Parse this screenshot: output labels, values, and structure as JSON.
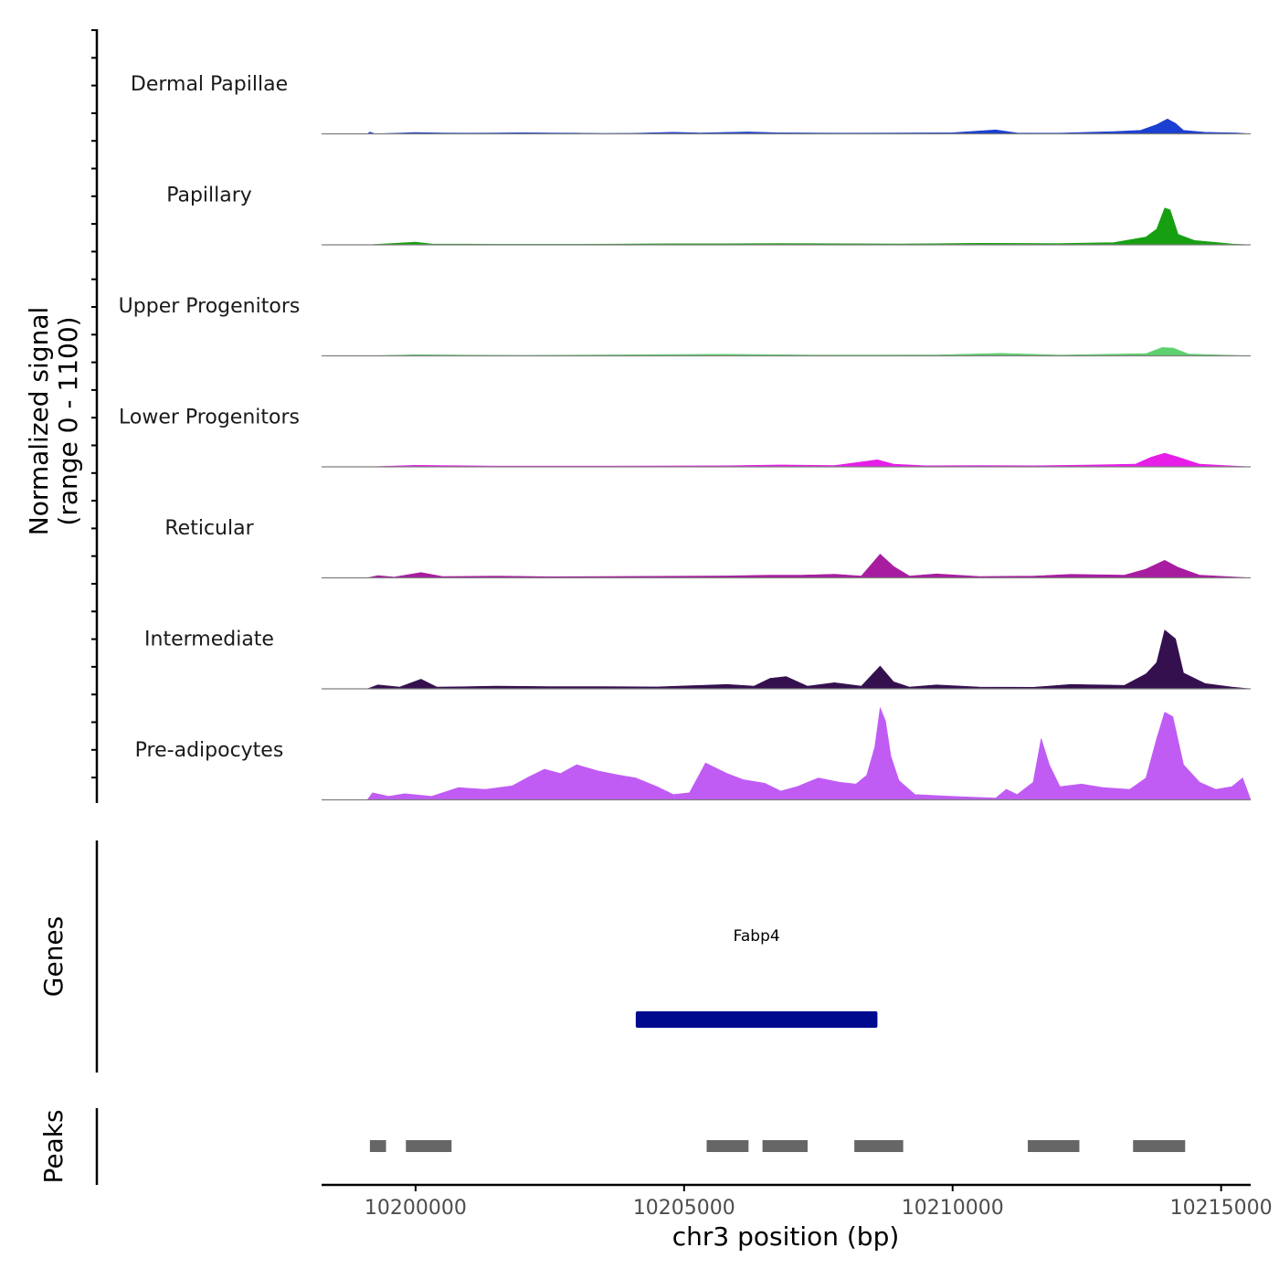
{
  "chart_data": {
    "type": "area",
    "title": "",
    "ylabel_line1": "Normalized signal",
    "ylabel_line2": "(range 0 - 1100)",
    "ylim": [
      0,
      1100
    ],
    "xlabel": "chr3 position (bp)",
    "xlim": [
      10198250,
      10215550
    ],
    "xticks": [
      10200000,
      10205000,
      10210000,
      10215000
    ],
    "xtick_labels": [
      "10200000",
      "10205000",
      "10210000",
      "10215000"
    ],
    "grid": false,
    "tracks": [
      {
        "name": "Dermal Papillae",
        "color": "#1b3fd1",
        "points": [
          [
            10199100,
            0
          ],
          [
            10199150,
            20
          ],
          [
            10199250,
            0
          ],
          [
            10200000,
            15
          ],
          [
            10200500,
            10
          ],
          [
            10201000,
            8
          ],
          [
            10201500,
            10
          ],
          [
            10202000,
            12
          ],
          [
            10202500,
            10
          ],
          [
            10203000,
            8
          ],
          [
            10203500,
            5
          ],
          [
            10204000,
            6
          ],
          [
            10204800,
            18
          ],
          [
            10205300,
            10
          ],
          [
            10206200,
            22
          ],
          [
            10206700,
            12
          ],
          [
            10208000,
            8
          ],
          [
            10209000,
            10
          ],
          [
            10210000,
            12
          ],
          [
            10210800,
            45
          ],
          [
            10211200,
            10
          ],
          [
            10212000,
            8
          ],
          [
            10213000,
            25
          ],
          [
            10213500,
            40
          ],
          [
            10213800,
            105
          ],
          [
            10214000,
            170
          ],
          [
            10214150,
            120
          ],
          [
            10214300,
            40
          ],
          [
            10214700,
            18
          ],
          [
            10215300,
            10
          ],
          [
            10215550,
            0
          ]
        ]
      },
      {
        "name": "Papillary",
        "color": "#16a011",
        "points": [
          [
            10199100,
            0
          ],
          [
            10200000,
            30
          ],
          [
            10200300,
            10
          ],
          [
            10201500,
            6
          ],
          [
            10203000,
            6
          ],
          [
            10204800,
            12
          ],
          [
            10205800,
            12
          ],
          [
            10206800,
            15
          ],
          [
            10208000,
            12
          ],
          [
            10209000,
            10
          ],
          [
            10210500,
            18
          ],
          [
            10212000,
            15
          ],
          [
            10213000,
            25
          ],
          [
            10213600,
            90
          ],
          [
            10213800,
            180
          ],
          [
            10213950,
            420
          ],
          [
            10214050,
            400
          ],
          [
            10214200,
            120
          ],
          [
            10214500,
            50
          ],
          [
            10215200,
            10
          ],
          [
            10215550,
            0
          ]
        ]
      },
      {
        "name": "Upper Progenitors",
        "color": "#5ed16e",
        "points": [
          [
            10199100,
            0
          ],
          [
            10200000,
            12
          ],
          [
            10202000,
            5
          ],
          [
            10205800,
            18
          ],
          [
            10207500,
            8
          ],
          [
            10209700,
            10
          ],
          [
            10210900,
            28
          ],
          [
            10212000,
            8
          ],
          [
            10213600,
            25
          ],
          [
            10213900,
            95
          ],
          [
            10214100,
            90
          ],
          [
            10214400,
            20
          ],
          [
            10215550,
            0
          ]
        ]
      },
      {
        "name": "Lower Progenitors",
        "color": "#e61ee8",
        "points": [
          [
            10199100,
            0
          ],
          [
            10200000,
            18
          ],
          [
            10201500,
            8
          ],
          [
            10203500,
            8
          ],
          [
            10205800,
            12
          ],
          [
            10206800,
            22
          ],
          [
            10207800,
            15
          ],
          [
            10208600,
            80
          ],
          [
            10208900,
            30
          ],
          [
            10209500,
            12
          ],
          [
            10210500,
            15
          ],
          [
            10211500,
            12
          ],
          [
            10212500,
            20
          ],
          [
            10213400,
            30
          ],
          [
            10213700,
            110
          ],
          [
            10213950,
            155
          ],
          [
            10214200,
            110
          ],
          [
            10214600,
            30
          ],
          [
            10215550,
            0
          ]
        ]
      },
      {
        "name": "Reticular",
        "color": "#a81da0",
        "points": [
          [
            10199100,
            0
          ],
          [
            10199300,
            25
          ],
          [
            10199600,
            8
          ],
          [
            10200100,
            60
          ],
          [
            10200500,
            15
          ],
          [
            10201500,
            20
          ],
          [
            10202500,
            12
          ],
          [
            10203500,
            15
          ],
          [
            10204500,
            18
          ],
          [
            10205800,
            22
          ],
          [
            10206600,
            30
          ],
          [
            10207200,
            30
          ],
          [
            10207800,
            42
          ],
          [
            10208300,
            20
          ],
          [
            10208650,
            270
          ],
          [
            10208900,
            130
          ],
          [
            10209200,
            20
          ],
          [
            10209700,
            45
          ],
          [
            10210500,
            15
          ],
          [
            10211500,
            20
          ],
          [
            10212200,
            40
          ],
          [
            10213200,
            30
          ],
          [
            10213600,
            100
          ],
          [
            10213950,
            200
          ],
          [
            10214200,
            120
          ],
          [
            10214600,
            30
          ],
          [
            10215550,
            0
          ]
        ]
      },
      {
        "name": "Intermediate",
        "color": "#35104f",
        "points": [
          [
            10199100,
            0
          ],
          [
            10199300,
            45
          ],
          [
            10199700,
            20
          ],
          [
            10200100,
            110
          ],
          [
            10200400,
            20
          ],
          [
            10201500,
            30
          ],
          [
            10202500,
            25
          ],
          [
            10203500,
            25
          ],
          [
            10204500,
            22
          ],
          [
            10205800,
            50
          ],
          [
            10206300,
            30
          ],
          [
            10206600,
            120
          ],
          [
            10206900,
            140
          ],
          [
            10207300,
            30
          ],
          [
            10207800,
            70
          ],
          [
            10208300,
            30
          ],
          [
            10208650,
            260
          ],
          [
            10208900,
            80
          ],
          [
            10209200,
            20
          ],
          [
            10209700,
            45
          ],
          [
            10210500,
            20
          ],
          [
            10211500,
            18
          ],
          [
            10212200,
            50
          ],
          [
            10213200,
            40
          ],
          [
            10213600,
            170
          ],
          [
            10213800,
            300
          ],
          [
            10213950,
            670
          ],
          [
            10214150,
            570
          ],
          [
            10214300,
            180
          ],
          [
            10214700,
            60
          ],
          [
            10215200,
            20
          ],
          [
            10215550,
            0
          ]
        ]
      },
      {
        "name": "Pre-adipocytes",
        "color": "#c05cf4",
        "points": [
          [
            10199100,
            0
          ],
          [
            10199200,
            80
          ],
          [
            10199500,
            40
          ],
          [
            10199800,
            70
          ],
          [
            10200300,
            40
          ],
          [
            10200800,
            140
          ],
          [
            10201300,
            120
          ],
          [
            10201800,
            160
          ],
          [
            10202100,
            260
          ],
          [
            10202400,
            350
          ],
          [
            10202700,
            300
          ],
          [
            10203000,
            400
          ],
          [
            10203400,
            330
          ],
          [
            10203800,
            280
          ],
          [
            10204100,
            250
          ],
          [
            10204500,
            150
          ],
          [
            10204800,
            60
          ],
          [
            10205100,
            80
          ],
          [
            10205400,
            420
          ],
          [
            10205800,
            300
          ],
          [
            10206100,
            230
          ],
          [
            10206500,
            190
          ],
          [
            10206800,
            100
          ],
          [
            10207100,
            150
          ],
          [
            10207500,
            250
          ],
          [
            10207900,
            200
          ],
          [
            10208200,
            180
          ],
          [
            10208400,
            280
          ],
          [
            10208550,
            600
          ],
          [
            10208650,
            1050
          ],
          [
            10208750,
            900
          ],
          [
            10208850,
            500
          ],
          [
            10209000,
            220
          ],
          [
            10209300,
            60
          ],
          [
            10210000,
            40
          ],
          [
            10210800,
            20
          ],
          [
            10211000,
            120
          ],
          [
            10211200,
            60
          ],
          [
            10211500,
            200
          ],
          [
            10211650,
            700
          ],
          [
            10211800,
            400
          ],
          [
            10212000,
            150
          ],
          [
            10212400,
            180
          ],
          [
            10212800,
            140
          ],
          [
            10213300,
            120
          ],
          [
            10213600,
            250
          ],
          [
            10213800,
            700
          ],
          [
            10213950,
            1000
          ],
          [
            10214100,
            950
          ],
          [
            10214300,
            400
          ],
          [
            10214600,
            200
          ],
          [
            10214900,
            120
          ],
          [
            10215200,
            150
          ],
          [
            10215400,
            250
          ],
          [
            10215550,
            0
          ]
        ]
      }
    ],
    "genes_title": "Genes",
    "genes": [
      {
        "name": "Fabp4",
        "start": 10204100,
        "end": 10208600,
        "color": "#000a8f"
      }
    ],
    "peaks_title": "Peaks",
    "peaks_color": "#666666",
    "peaks": [
      [
        10199150,
        10199450
      ],
      [
        10199820,
        10200670
      ],
      [
        10205420,
        10206200
      ],
      [
        10206460,
        10207300
      ],
      [
        10208170,
        10209080
      ],
      [
        10211400,
        10212360
      ],
      [
        10213360,
        10214330
      ]
    ]
  }
}
